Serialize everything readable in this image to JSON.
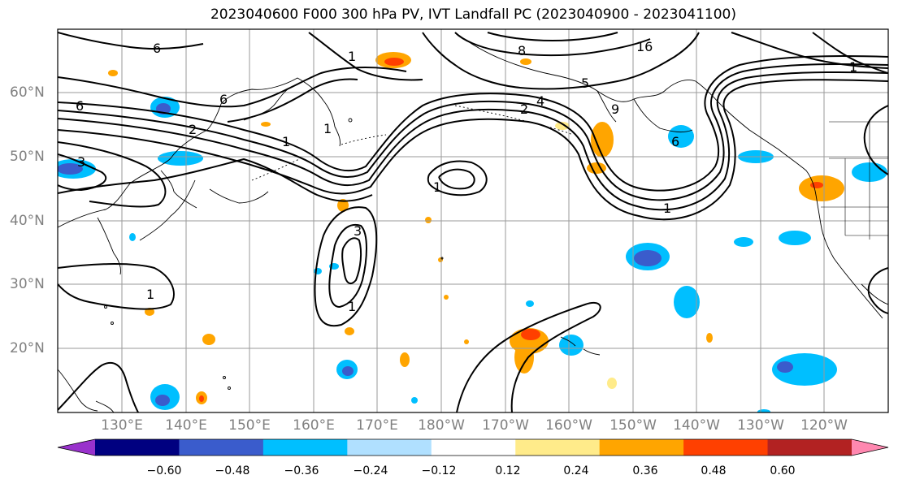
{
  "title": "2023040600 F000 300 hPa PV, IVT Landfall PC (2023040900 - 2023041100)",
  "lat_labels": [
    "60°N",
    "50°N",
    "40°N",
    "30°N",
    "20°N"
  ],
  "lon_labels": [
    "130°E",
    "140°E",
    "150°E",
    "160°E",
    "170°E",
    "180°W",
    "170°W",
    "160°W",
    "150°W",
    "140°W",
    "130°W",
    "120°W"
  ],
  "colorbar": {
    "ticks": [
      "−0.60",
      "−0.48",
      "−0.36",
      "−0.24",
      "−0.12",
      "0.12",
      "0.24",
      "0.36",
      "0.48",
      "0.60"
    ],
    "colors": [
      "#9932cc",
      "#000080",
      "#3a5ccc",
      "#00bfff",
      "#b0e0ff",
      "#ffffff",
      "#ffeb8a",
      "#ffa500",
      "#ff4000",
      "#b22222",
      "#ff88b0"
    ]
  },
  "contour_labels": [
    "6",
    "6",
    "6",
    "6",
    "3",
    "3",
    "1",
    "1",
    "1",
    "1",
    "1",
    "1",
    "1",
    "1",
    "2",
    "2",
    "4",
    "5",
    "8",
    "9",
    "16"
  ]
}
